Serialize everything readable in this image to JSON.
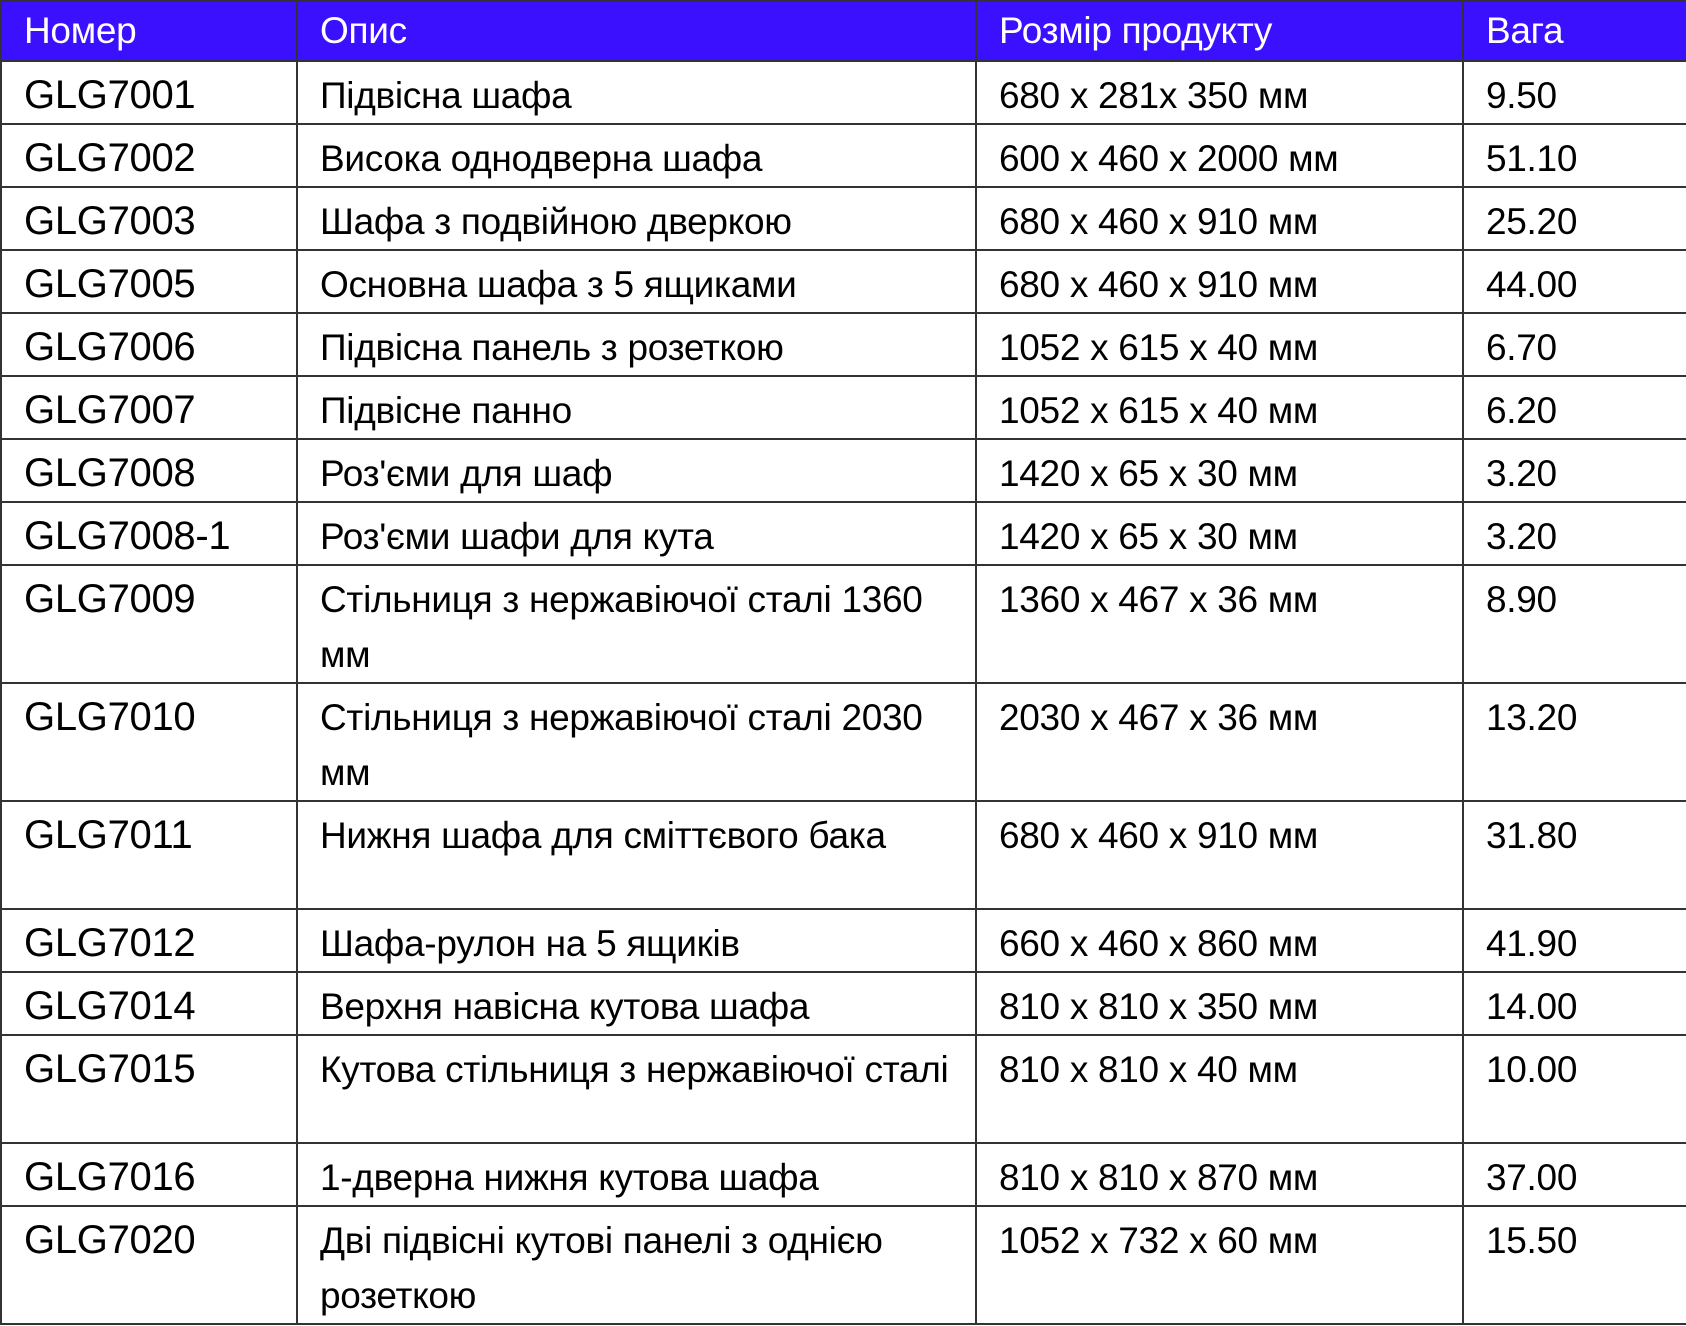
{
  "header": {
    "number": "Номер",
    "description": "Опис",
    "size": "Розмір продукту",
    "weight": "Вага"
  },
  "header_color": "#3a10ff",
  "rows": [
    {
      "number": "GLG7001",
      "description": "Підвісна  шафа",
      "size": "680 x 281x 350 мм",
      "weight": "9.50"
    },
    {
      "number": "GLG7002",
      "description": "Висока однодверна шафа",
      "size": "600 x 460 x 2000 мм",
      "weight": "51.10"
    },
    {
      "number": "GLG7003",
      "description": "Шафа з подвійною дверкою",
      "size": "680 x 460 x 910 мм",
      "weight": "25.20"
    },
    {
      "number": "GLG7005",
      "description": "Основна шафа з 5 ящиками",
      "size": "680 x 460 x 910 мм",
      "weight": "44.00"
    },
    {
      "number": "GLG7006",
      "description": "Підвісна панель з розеткою",
      "size": "1052 x 615 x 40 мм",
      "weight": "6.70"
    },
    {
      "number": "GLG7007",
      "description": "Підвісне панно",
      "size": "1052 x 615 x 40 мм",
      "weight": "6.20"
    },
    {
      "number": "GLG7008",
      "description": "Роз'єми для шаф",
      "size": "1420 x 65 x 30 мм",
      "weight": "3.20"
    },
    {
      "number": "GLG7008-1",
      "description": "Роз'єми шафи для кута",
      "size": "1420 x 65 x 30 мм",
      "weight": "3.20"
    },
    {
      "number": "GLG7009",
      "description": "Стільниця з нержавіючої сталі 1360 мм",
      "size": "1360 x 467 x 36 мм",
      "weight": "8.90"
    },
    {
      "number": "GLG7010",
      "description": "Стільниця з нержавіючої сталі 2030 мм",
      "size": "2030 x 467 x 36 мм",
      "weight": "13.20"
    },
    {
      "number": "GLG7011",
      "description": "Нижня шафа для сміттєвого бака",
      "size": "680 x 460 x 910 мм",
      "weight": "31.80"
    },
    {
      "number": "GLG7012",
      "description": "Шафа-рулон на 5 ящиків",
      "size": "660 x 460 x 860 мм",
      "weight": "41.90"
    },
    {
      "number": "GLG7014",
      "description": "Верхня  навісна кутова шафа",
      "size": "810 x 810 x 350 мм",
      "weight": "14.00"
    },
    {
      "number": "GLG7015",
      "description": "Кутова стільниця з нержавіючої сталі",
      "size": "810 x 810 x 40 мм",
      "weight": "10.00"
    },
    {
      "number": "GLG7016",
      "description": "1-дверна нижня кутова шафа",
      "size": "810 x 810 x 870 мм",
      "weight": "37.00"
    },
    {
      "number": "GLG7020",
      "description": "Дві підвісні кутові панелі з однією розеткою",
      "size": "1052 x 732 x 60 мм",
      "weight": "15.50"
    }
  ]
}
